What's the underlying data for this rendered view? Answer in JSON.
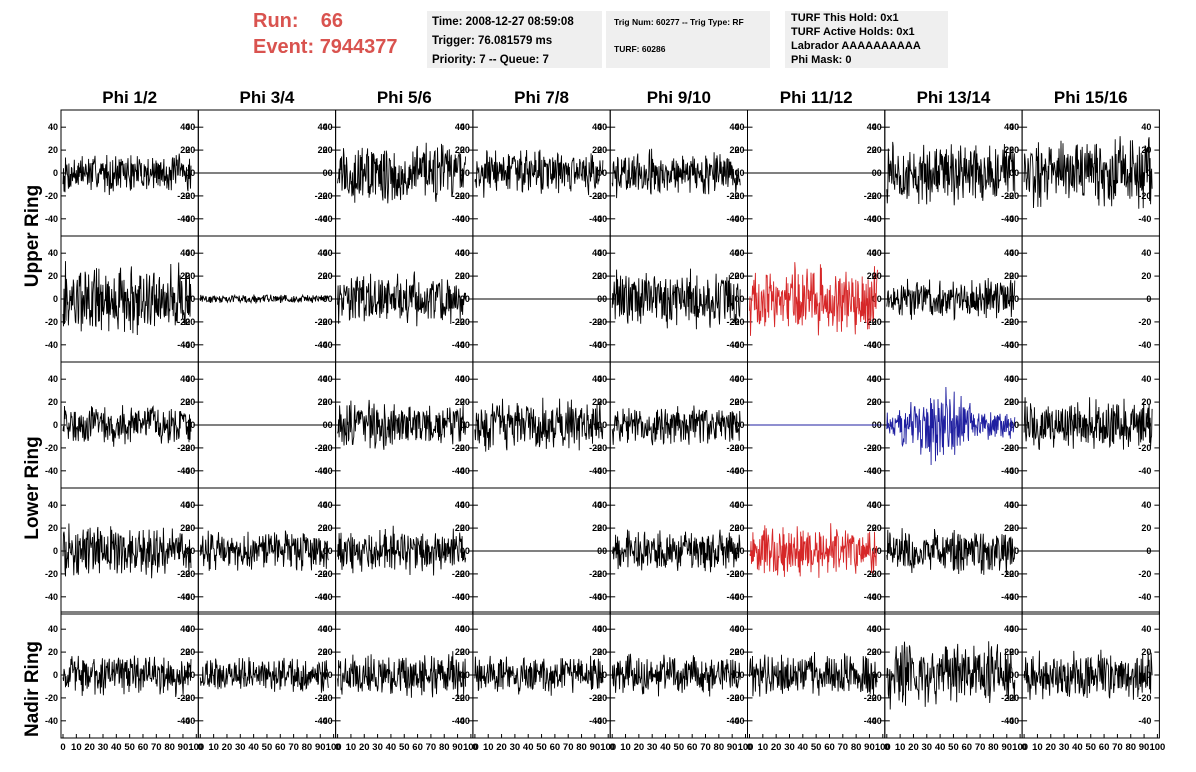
{
  "header": {
    "run_label": "Run:",
    "run_value": "66",
    "event_label": "Event:",
    "event_value": "7944377",
    "time": "Time: 2008-12-27 08:59:08",
    "trigger": "Trigger: 76.081579 ms",
    "priority": "Priority: 7 -- Queue: 7",
    "trig_num": "Trig Num: 60277 -- Trig Type: RF",
    "turf": "TURF: 60286",
    "turf_this_hold": "TURF This Hold: 0x1",
    "turf_active_holds": "TURF Active Holds: 0x1",
    "labrador": "Labrador AAAAAAAAAA",
    "phi_mask": "Phi Mask: 0"
  },
  "chart_data": {
    "type": "line",
    "columns": [
      "Phi 1/2",
      "Phi 3/4",
      "Phi 5/6",
      "Phi 7/8",
      "Phi 9/10",
      "Phi 11/12",
      "Phi 13/14",
      "Phi 15/16"
    ],
    "ring_labels": [
      "Upper Ring",
      "Lower Ring",
      "Nadir Ring"
    ],
    "x_ticks": [
      "0",
      "10",
      "20",
      "30",
      "40",
      "50",
      "60",
      "70",
      "80",
      "90",
      "100"
    ],
    "y_ticks": [
      "40",
      "20",
      "0",
      "-20",
      "-40"
    ],
    "xlim": [
      0,
      100
    ],
    "ylim": [
      -55,
      55
    ],
    "colors": {
      "normal": "#000000",
      "red": "#d62728",
      "blue": "#1f1fa0"
    },
    "panels": [
      [
        {
          "amp": 14
        },
        {
          "amp": 0
        },
        {
          "amp": 22
        },
        {
          "amp": 16
        },
        {
          "amp": 16
        },
        {
          "amp": 0
        },
        {
          "amp": 22
        },
        {
          "amp": 24
        }
      ],
      [
        {
          "amp": 25
        },
        {
          "amp": 3
        },
        {
          "amp": 18
        },
        {
          "amp": 0
        },
        {
          "amp": 20
        },
        {
          "amp": 24,
          "color": "red"
        },
        {
          "amp": 14
        },
        {
          "amp": 0
        }
      ],
      [
        {
          "amp": 14
        },
        {
          "amp": 0
        },
        {
          "amp": 16
        },
        {
          "amp": 18
        },
        {
          "amp": 14
        },
        {
          "amp": 0,
          "color": "blue"
        },
        {
          "amp": 22,
          "color": "blue"
        },
        {
          "amp": 18
        }
      ],
      [
        {
          "amp": 18
        },
        {
          "amp": 14
        },
        {
          "amp": 16
        },
        {
          "amp": 0
        },
        {
          "amp": 15
        },
        {
          "amp": 18,
          "color": "red"
        },
        {
          "amp": 16
        },
        {
          "amp": 0
        }
      ],
      [
        {
          "amp": 14
        },
        {
          "amp": 12
        },
        {
          "amp": 15
        },
        {
          "amp": 14
        },
        {
          "amp": 14
        },
        {
          "amp": 15
        },
        {
          "amp": 22
        },
        {
          "amp": 18
        }
      ]
    ]
  }
}
